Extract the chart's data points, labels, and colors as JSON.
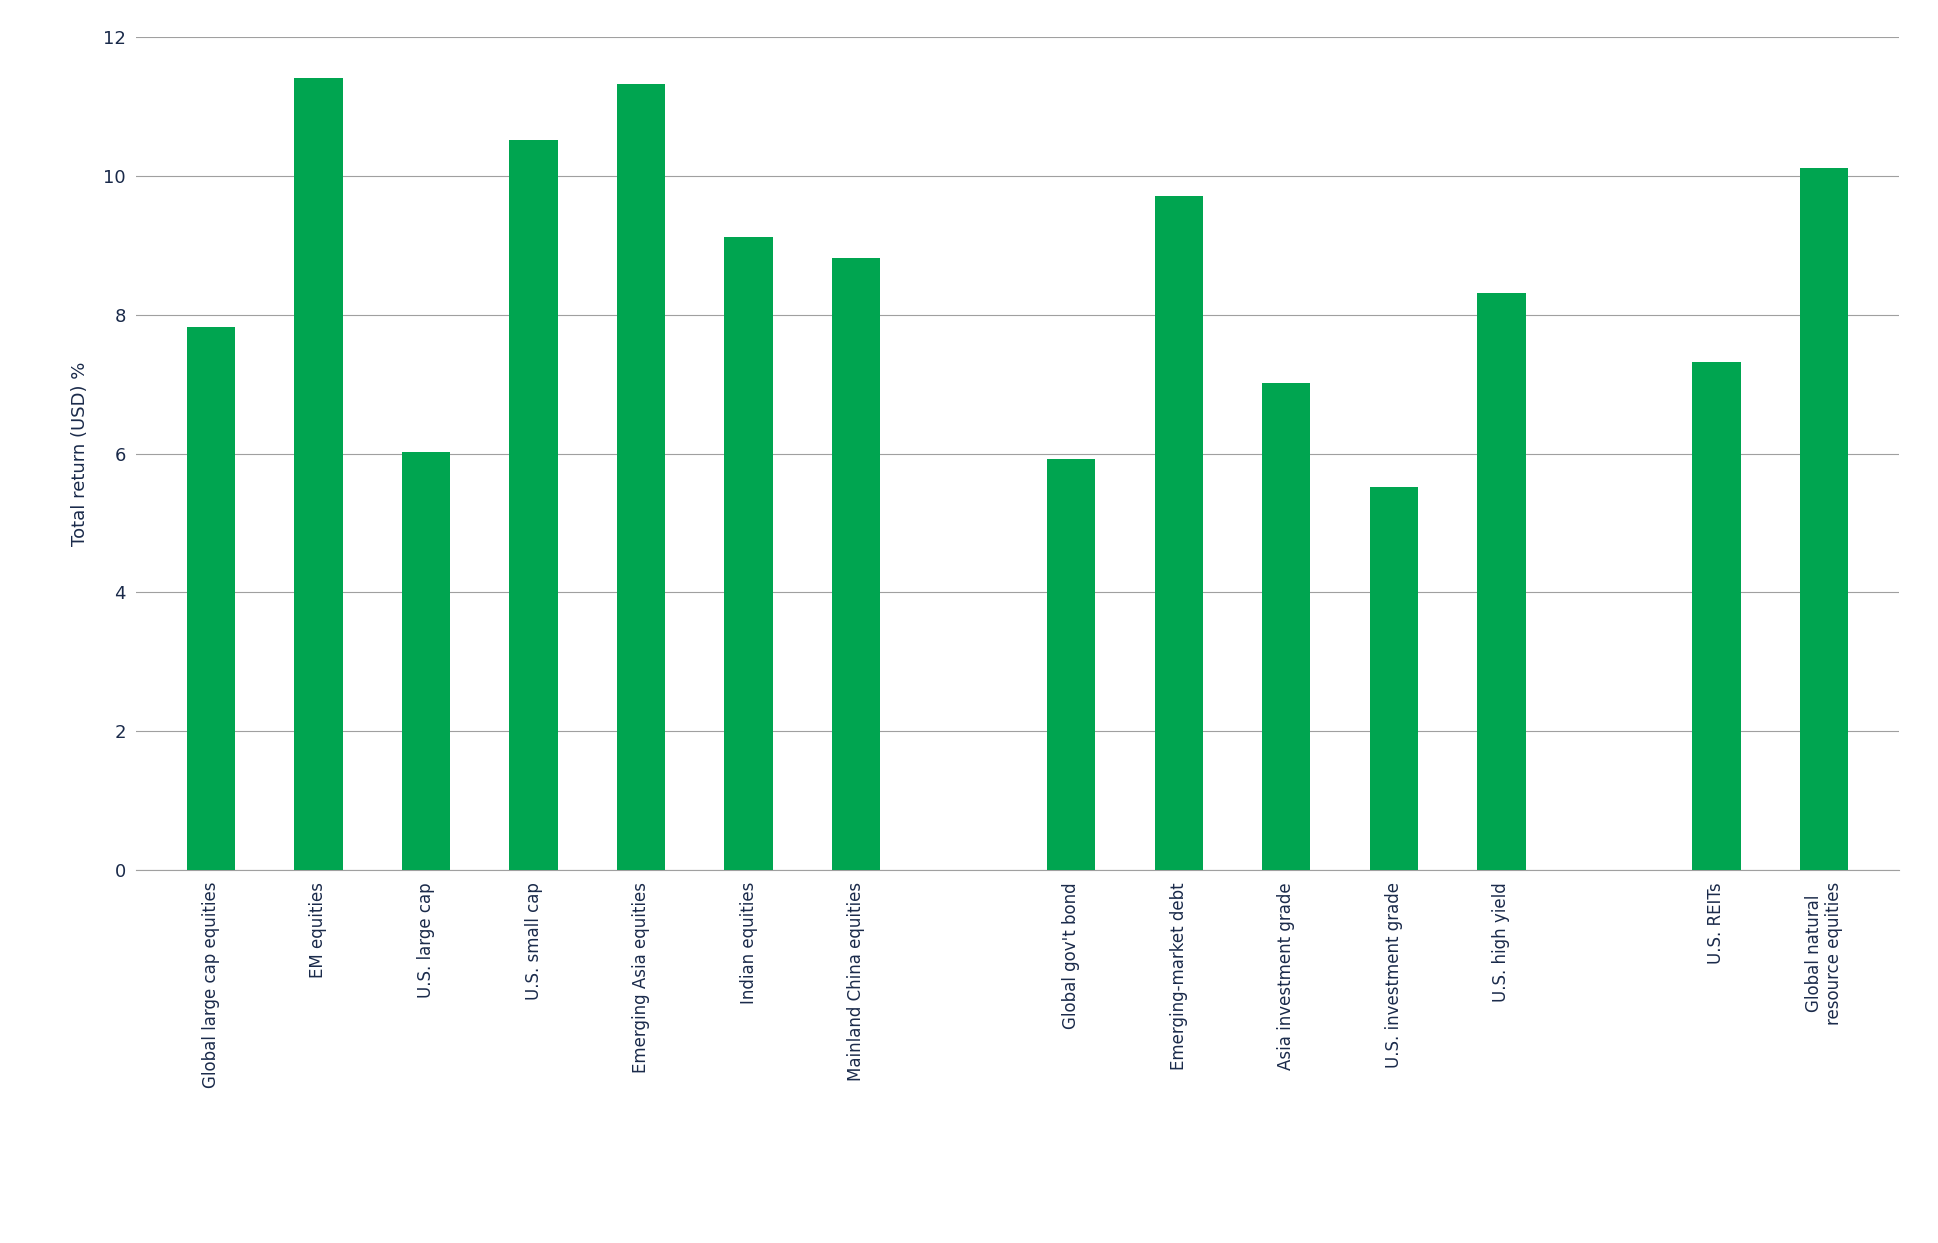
{
  "categories": [
    "Global large cap equities",
    "EM equities",
    "U.S. large cap",
    "U.S. small cap",
    "Emerging Asia equities",
    "Indian equities",
    "Mainland China equities",
    "",
    "Global gov't bond",
    "Emerging-market debt",
    "Asia investment grade",
    "U.S. investment grade",
    "U.S. high yield",
    "",
    "U.S. REITs",
    "Global natural\nresource equities"
  ],
  "values": [
    7.82,
    11.42,
    6.02,
    10.52,
    11.32,
    9.12,
    8.82,
    0,
    5.92,
    9.72,
    7.02,
    5.52,
    8.32,
    0,
    7.32,
    10.12
  ],
  "bar_color": "#00A550",
  "ylabel": "Total return (USD) %",
  "ylim": [
    0,
    12
  ],
  "yticks": [
    0,
    2,
    4,
    6,
    8,
    10,
    12
  ],
  "grid_color": "#a0a0a0",
  "background_color": "#ffffff",
  "ylabel_fontsize": 13,
  "tick_fontsize": 13,
  "label_fontsize": 12,
  "text_color": "#1a2a4a",
  "bar_width": 0.45
}
